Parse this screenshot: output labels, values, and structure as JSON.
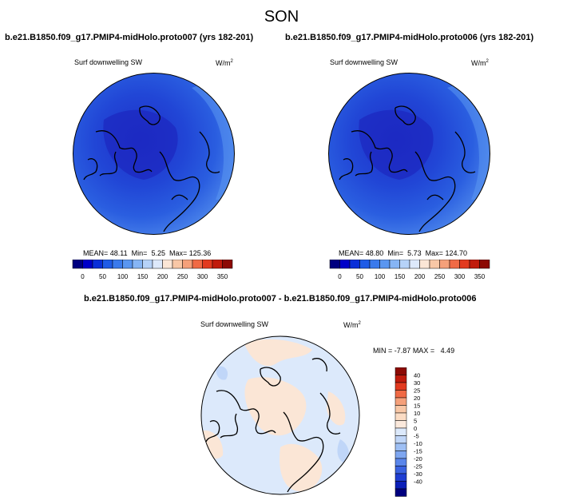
{
  "page_title": "SON",
  "panels": [
    {
      "title": "b.e21.B1850.f09_g17.PMIP4-midHolo.proto007 (yrs 182-201)",
      "variable": "Surf downwelling SW",
      "units": "W/m",
      "units_exp": "2",
      "stats": {
        "mean_label": "MEAN=",
        "mean": "48.11",
        "min_label": "Min=",
        "min": "5.25",
        "max_label": "Max=",
        "max": "125.36"
      }
    },
    {
      "title": "b.e21.B1850.f09_g17.PMIP4-midHolo.proto006 (yrs 182-201)",
      "variable": "Surf downwelling SW",
      "units": "W/m",
      "units_exp": "2",
      "stats": {
        "mean_label": "MEAN=",
        "mean": "48.80",
        "min_label": "Min=",
        "min": "5.73",
        "max_label": "Max=",
        "max": "124.70"
      }
    }
  ],
  "abs_colorbar": {
    "colors": [
      "#00007f",
      "#0000c8",
      "#0a2fd8",
      "#1f5be6",
      "#3a7aec",
      "#5a96f0",
      "#86b5f4",
      "#b6d2f8",
      "#dde9fb",
      "#fbe6d6",
      "#f8c7a6",
      "#f5a07a",
      "#f06a45",
      "#e23a1f",
      "#c01b0c",
      "#8c0a04"
    ],
    "labels": [
      "0",
      "50",
      "100",
      "150",
      "200",
      "250",
      "300",
      "350"
    ]
  },
  "diff_panel": {
    "title": "b.e21.B1850.f09_g17.PMIP4-midHolo.proto007 - b.e21.B1850.f09_g17.PMIP4-midHolo.proto006",
    "variable": "Surf downwelling SW",
    "units": "W/m",
    "units_exp": "2",
    "stats": {
      "min_label": "MIN =",
      "min": "-7.87",
      "max_label": "MAX =",
      "max": "4.49"
    }
  },
  "diff_colorbar": {
    "colors": [
      "#8c0a04",
      "#c01b0c",
      "#e23a1f",
      "#f06a45",
      "#f5a07a",
      "#f8c7a6",
      "#fbdcc4",
      "#fbe9dc",
      "#dce9fb",
      "#c0d6f8",
      "#9ebff4",
      "#7ea6f0",
      "#5a86ea",
      "#3a62e0",
      "#1f3ed2",
      "#0b1fb8",
      "#00007f"
    ],
    "labels": [
      "40",
      "30",
      "25",
      "20",
      "15",
      "10",
      "5",
      "0",
      "-5",
      "-10",
      "-15",
      "-20",
      "-25",
      "-30",
      "-40"
    ]
  }
}
